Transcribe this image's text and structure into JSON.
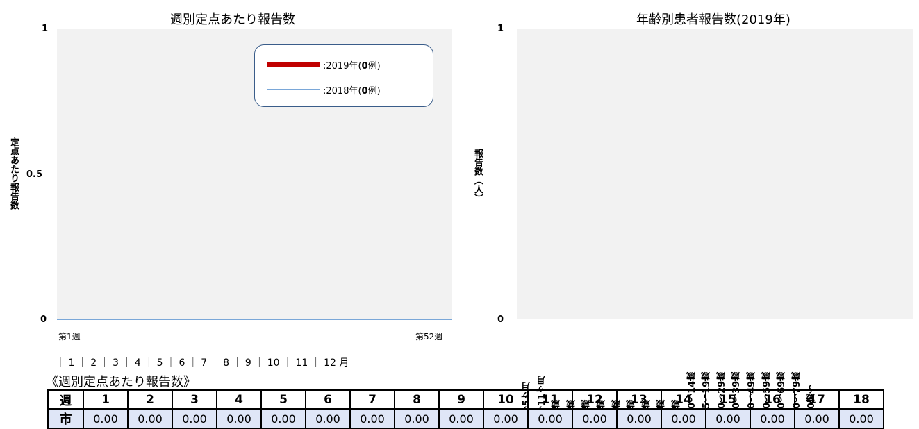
{
  "chart_data": [
    {
      "type": "line",
      "title": "週別定点あたり報告数",
      "ylabel": "定点あたり報告数",
      "ylim": [
        0,
        1
      ],
      "yticks": [
        "0",
        "0.5",
        "1"
      ],
      "x_start_label": "第1週",
      "x_end_label": "第52週",
      "months_axis": "｜ 1 ｜ 2 ｜ 3 ｜ 4 ｜ 5 ｜ 6 ｜ 7 ｜ 8 ｜ 9 ｜ 10 ｜ 11 ｜ 12 月",
      "legend_position": "top-right",
      "series": [
        {
          "name": ":2019年(0例)",
          "legend_prefix": ":2019年(",
          "legend_count": "0",
          "legend_suffix": "例)",
          "color": "#c00000",
          "values": []
        },
        {
          "name": ":2018年(0例)",
          "legend_prefix": ":2018年(",
          "legend_count": "0",
          "legend_suffix": "例)",
          "color": "#7aa7d8",
          "values": [
            0,
            0,
            0,
            0,
            0,
            0,
            0,
            0,
            0,
            0,
            0,
            0,
            0,
            0,
            0,
            0,
            0,
            0,
            0,
            0,
            0,
            0,
            0,
            0,
            0,
            0,
            0,
            0,
            0,
            0,
            0,
            0,
            0,
            0,
            0,
            0,
            0,
            0,
            0,
            0,
            0,
            0,
            0,
            0,
            0,
            0,
            0,
            0,
            0,
            0,
            0,
            0
          ]
        }
      ]
    },
    {
      "type": "bar",
      "title": "年齢別患者報告数(2019年)",
      "ylabel": "報告数（人）",
      "ylim": [
        0,
        1
      ],
      "yticks": [
        "0",
        "1"
      ],
      "categories": [
        "～5ヶ月",
        "～11ヶ月",
        "1歳",
        "2歳",
        "3歳",
        "4歳",
        "5歳",
        "6歳",
        "7歳",
        "8歳",
        "9歳",
        "10～14歳",
        "15～19歳",
        "20～29歳",
        "30～39歳",
        "40～49歳",
        "50～59歳",
        "60～69歳",
        "70～79歳",
        "80歳～"
      ],
      "values": [
        0,
        0,
        0,
        0,
        0,
        0,
        0,
        0,
        0,
        0,
        0,
        0,
        0,
        0,
        0,
        0,
        0,
        0,
        0,
        0
      ]
    }
  ],
  "table": {
    "section_title": "《週別定点あたり報告数》",
    "header_label": "週",
    "weeks": [
      "1",
      "2",
      "3",
      "4",
      "5",
      "6",
      "7",
      "8",
      "9",
      "10",
      "11",
      "12",
      "13",
      "14",
      "15",
      "16",
      "17",
      "18"
    ],
    "row_label": "市",
    "values": [
      "0.00",
      "0.00",
      "0.00",
      "0.00",
      "0.00",
      "0.00",
      "0.00",
      "0.00",
      "0.00",
      "0.00",
      "0.00",
      "0.00",
      "0.00",
      "0.00",
      "0.00",
      "0.00",
      "0.00",
      "0.00"
    ]
  },
  "colors": {
    "plot_background": "#f2f2f2",
    "series_2019": "#c00000",
    "series_2018": "#7aa7d8",
    "legend_border": "#3a5d8a",
    "table_value_row": "#dfe6f7"
  }
}
